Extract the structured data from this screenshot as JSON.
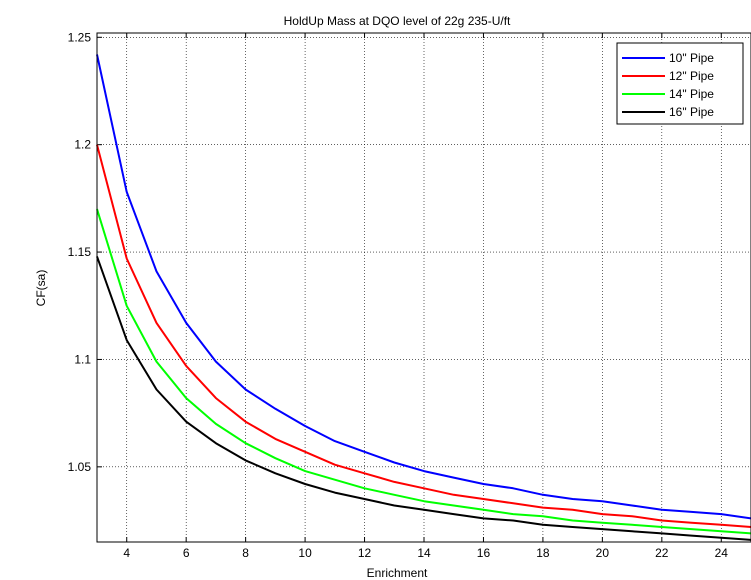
{
  "chart_data": {
    "type": "line",
    "title": "HoldUp Mass at DQO level of 22g 235-U/ft",
    "xlabel": "Enrichment",
    "ylabel": "CF(sa)",
    "xlim": [
      3,
      25
    ],
    "ylim": [
      1.015,
      1.252
    ],
    "xticks": [
      4,
      6,
      8,
      10,
      12,
      14,
      16,
      18,
      20,
      22,
      24
    ],
    "yticks": [
      1.05,
      1.1,
      1.15,
      1.2,
      1.25
    ],
    "ytick_labels": [
      "1.05",
      "1.1",
      "1.15",
      "1.2",
      "1.25"
    ],
    "grid": true,
    "legend_position": "top-right",
    "x": [
      3,
      4,
      5,
      6,
      7,
      8,
      9,
      10,
      11,
      12,
      13,
      14,
      15,
      16,
      17,
      18,
      19,
      20,
      21,
      22,
      23,
      24,
      25
    ],
    "series": [
      {
        "name": "10\" Pipe",
        "color": "#0000ff",
        "values": [
          1.242,
          1.178,
          1.141,
          1.117,
          1.099,
          1.086,
          1.077,
          1.069,
          1.062,
          1.057,
          1.052,
          1.048,
          1.045,
          1.042,
          1.04,
          1.037,
          1.035,
          1.034,
          1.032,
          1.03,
          1.029,
          1.028,
          1.026
        ]
      },
      {
        "name": "12\" Pipe",
        "color": "#ff0000",
        "values": [
          1.2,
          1.147,
          1.117,
          1.097,
          1.082,
          1.071,
          1.063,
          1.057,
          1.051,
          1.047,
          1.043,
          1.04,
          1.037,
          1.035,
          1.033,
          1.031,
          1.03,
          1.028,
          1.027,
          1.025,
          1.024,
          1.023,
          1.022
        ]
      },
      {
        "name": "14\" Pipe",
        "color": "#00ff00",
        "values": [
          1.17,
          1.125,
          1.099,
          1.082,
          1.07,
          1.061,
          1.054,
          1.048,
          1.044,
          1.04,
          1.037,
          1.034,
          1.032,
          1.03,
          1.028,
          1.027,
          1.025,
          1.024,
          1.023,
          1.022,
          1.021,
          1.02,
          1.019
        ]
      },
      {
        "name": "16\" Pipe",
        "color": "#000000",
        "values": [
          1.148,
          1.109,
          1.086,
          1.071,
          1.061,
          1.053,
          1.047,
          1.042,
          1.038,
          1.035,
          1.032,
          1.03,
          1.028,
          1.026,
          1.025,
          1.023,
          1.022,
          1.021,
          1.02,
          1.019,
          1.018,
          1.017,
          1.016
        ]
      }
    ]
  }
}
